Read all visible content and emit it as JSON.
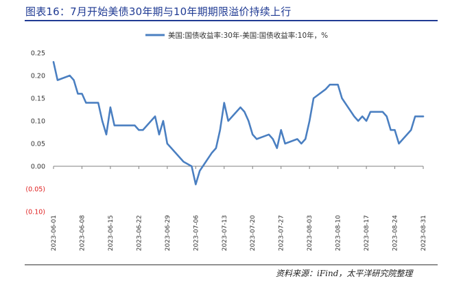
{
  "figure": {
    "title": "图表16：7月开始美债30年期与10年期期限溢价持续上行",
    "source": "资料来源：iFind，太平洋研究院整理"
  },
  "colors": {
    "title": "#1f3a93",
    "line": "#4a7fc1",
    "negative_tick": "#e02020",
    "axis": "#7f7f7f"
  },
  "chart_data": {
    "type": "line",
    "title": "",
    "xlabel": "",
    "ylabel": "",
    "legend": {
      "position": "top"
    },
    "ylim": [
      -0.1,
      0.25
    ],
    "y_ticks": [
      0.25,
      0.2,
      0.15,
      0.1,
      0.05,
      0.0,
      -0.05,
      -0.1
    ],
    "y_tick_labels": [
      "0.25",
      "0.20",
      "0.15",
      "0.10",
      "0.05",
      "0.00",
      "(0.05)",
      "(0.10)"
    ],
    "x_tick_labels": [
      "2023-06-01",
      "2023-06-08",
      "2023-06-15",
      "2023-06-22",
      "2023-06-29",
      "2023-07-06",
      "2023-07-13",
      "2023-07-20",
      "2023-07-27",
      "2023-08-03",
      "2023-08-10",
      "2023-08-17",
      "2023-08-24",
      "2023-08-31"
    ],
    "x_range": [
      "2023-06-01",
      "2023-08-31"
    ],
    "grid": false,
    "series": [
      {
        "name": "美国:国债收益率:30年-美国:国债收益率:10年，%",
        "points": [
          [
            "2023-06-01",
            0.23
          ],
          [
            "2023-06-02",
            0.19
          ],
          [
            "2023-06-05",
            0.2
          ],
          [
            "2023-06-06",
            0.19
          ],
          [
            "2023-06-07",
            0.16
          ],
          [
            "2023-06-08",
            0.16
          ],
          [
            "2023-06-09",
            0.14
          ],
          [
            "2023-06-12",
            0.14
          ],
          [
            "2023-06-13",
            0.1
          ],
          [
            "2023-06-14",
            0.07
          ],
          [
            "2023-06-15",
            0.13
          ],
          [
            "2023-06-16",
            0.09
          ],
          [
            "2023-06-20",
            0.09
          ],
          [
            "2023-06-21",
            0.09
          ],
          [
            "2023-06-22",
            0.08
          ],
          [
            "2023-06-23",
            0.08
          ],
          [
            "2023-06-26",
            0.11
          ],
          [
            "2023-06-27",
            0.07
          ],
          [
            "2023-06-28",
            0.1
          ],
          [
            "2023-06-29",
            0.05
          ],
          [
            "2023-06-30",
            0.04
          ],
          [
            "2023-07-03",
            0.01
          ],
          [
            "2023-07-05",
            0.0
          ],
          [
            "2023-07-06",
            -0.04
          ],
          [
            "2023-07-07",
            -0.01
          ],
          [
            "2023-07-10",
            0.03
          ],
          [
            "2023-07-11",
            0.04
          ],
          [
            "2023-07-12",
            0.08
          ],
          [
            "2023-07-13",
            0.14
          ],
          [
            "2023-07-14",
            0.1
          ],
          [
            "2023-07-17",
            0.13
          ],
          [
            "2023-07-18",
            0.12
          ],
          [
            "2023-07-19",
            0.1
          ],
          [
            "2023-07-20",
            0.07
          ],
          [
            "2023-07-21",
            0.06
          ],
          [
            "2023-07-24",
            0.07
          ],
          [
            "2023-07-25",
            0.06
          ],
          [
            "2023-07-26",
            0.04
          ],
          [
            "2023-07-27",
            0.08
          ],
          [
            "2023-07-28",
            0.05
          ],
          [
            "2023-07-31",
            0.06
          ],
          [
            "2023-08-01",
            0.05
          ],
          [
            "2023-08-02",
            0.06
          ],
          [
            "2023-08-03",
            0.1
          ],
          [
            "2023-08-04",
            0.15
          ],
          [
            "2023-08-07",
            0.17
          ],
          [
            "2023-08-08",
            0.18
          ],
          [
            "2023-08-09",
            0.18
          ],
          [
            "2023-08-10",
            0.18
          ],
          [
            "2023-08-11",
            0.15
          ],
          [
            "2023-08-14",
            0.11
          ],
          [
            "2023-08-15",
            0.1
          ],
          [
            "2023-08-16",
            0.11
          ],
          [
            "2023-08-17",
            0.1
          ],
          [
            "2023-08-18",
            0.12
          ],
          [
            "2023-08-21",
            0.12
          ],
          [
            "2023-08-22",
            0.11
          ],
          [
            "2023-08-23",
            0.08
          ],
          [
            "2023-08-24",
            0.08
          ],
          [
            "2023-08-25",
            0.05
          ],
          [
            "2023-08-28",
            0.08
          ],
          [
            "2023-08-29",
            0.11
          ],
          [
            "2023-08-30",
            0.11
          ],
          [
            "2023-08-31",
            0.11
          ]
        ]
      }
    ]
  }
}
